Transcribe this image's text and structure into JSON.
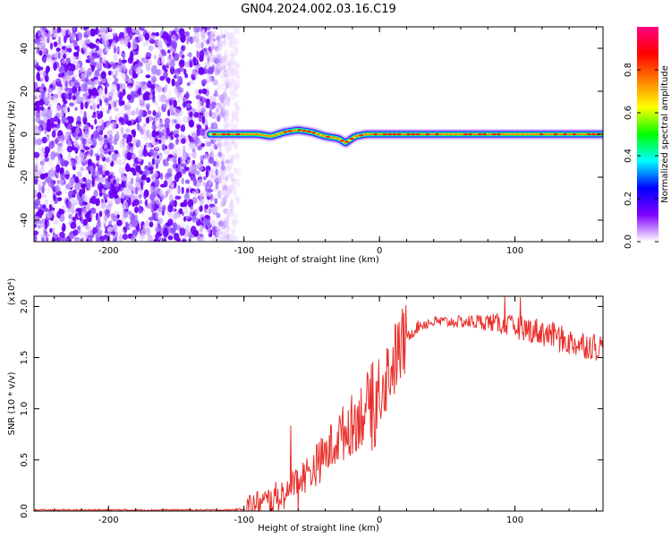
{
  "title": "GN04.2024.002.03.16.C19",
  "chart_data": [
    {
      "type": "heatmap",
      "xlabel": "Height of straight line (km)",
      "ylabel": "Frequency (Hz)",
      "xlim": [
        -255,
        165
      ],
      "ylim": [
        -50,
        50
      ],
      "x_ticks": [
        -200,
        -100,
        0,
        100
      ],
      "y_ticks": [
        -40,
        -20,
        0,
        20,
        40
      ],
      "noise_region_x": [
        -255,
        -110
      ],
      "signal_ridge": {
        "x_start": -125,
        "x_end": 165,
        "frequency_profile": [
          {
            "x": -125,
            "y": 0
          },
          {
            "x": -90,
            "y": 0
          },
          {
            "x": -80,
            "y": -1
          },
          {
            "x": -70,
            "y": 1
          },
          {
            "x": -60,
            "y": 2
          },
          {
            "x": -50,
            "y": 1
          },
          {
            "x": -40,
            "y": -1
          },
          {
            "x": -30,
            "y": -2
          },
          {
            "x": -25,
            "y": -4
          },
          {
            "x": -18,
            "y": -1
          },
          {
            "x": -10,
            "y": 0
          },
          {
            "x": 0,
            "y": 0
          },
          {
            "x": 165,
            "y": 0
          }
        ]
      },
      "colorbar": {
        "label": "Normalized spectral amplitude",
        "range": [
          0,
          1
        ],
        "ticks": [
          "0.0",
          "0.2",
          "0.4",
          "0.6",
          "0.8"
        ],
        "colors": [
          "#ffffff",
          "#8000ff",
          "#0000ff",
          "#00ffff",
          "#00ff00",
          "#ffff00",
          "#ff8000",
          "#ff0000",
          "#ff0080"
        ]
      }
    },
    {
      "type": "line",
      "xlabel": "Height of straight line (km)",
      "ylabel": "SNR (10 * v/v)",
      "y_multiplier": "(x10⁴)",
      "xlim": [
        -255,
        165
      ],
      "ylim": [
        0,
        2.1
      ],
      "x_ticks": [
        -200,
        -100,
        0,
        100
      ],
      "y_ticks": [
        "0.0",
        "0.5",
        "1.0",
        "1.5",
        "2.0"
      ],
      "series": [
        {
          "color": "#e8302c",
          "x": [
            -255,
            -200,
            -150,
            -110,
            -100,
            -90,
            -80,
            -70,
            -60,
            -50,
            -40,
            -30,
            -20,
            -10,
            0,
            10,
            20,
            30,
            40,
            60,
            80,
            100,
            120,
            140,
            165
          ],
          "y": [
            0.01,
            0.01,
            0.01,
            0.01,
            0.02,
            0.05,
            0.1,
            0.18,
            0.3,
            0.4,
            0.55,
            0.72,
            0.85,
            1.0,
            1.2,
            1.45,
            1.7,
            1.82,
            1.85,
            1.85,
            1.85,
            1.8,
            1.75,
            1.65,
            1.6
          ]
        }
      ]
    }
  ]
}
